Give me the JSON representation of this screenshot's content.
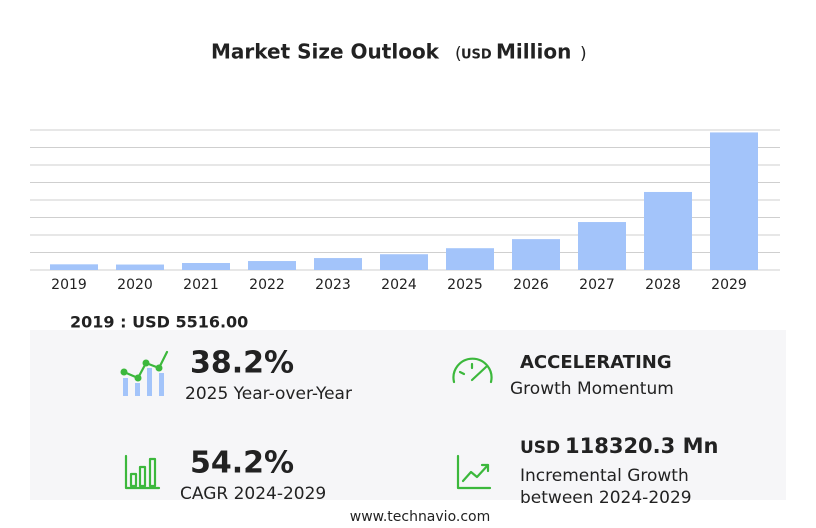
{
  "chart_data": {
    "type": "bar",
    "title": "Market Size Outlook",
    "unit": [
      "(",
      "USD",
      "Million",
      ")"
    ],
    "categories": [
      "2019",
      "2020",
      "2021",
      "2022",
      "2023",
      "2024",
      "2025",
      "2026",
      "2027",
      "2028",
      "2029"
    ],
    "values": [
      5516,
      5300,
      6800,
      8700,
      11600,
      15326,
      21180,
      30000,
      46600,
      75800,
      133646
    ],
    "color": "#a3c4fa",
    "ylim": [
      0,
      136000
    ],
    "yticks": [
      0,
      17000,
      34000,
      51000,
      68000,
      85000,
      102000,
      119000,
      136000
    ],
    "grid": true
  },
  "base": "2019 : USD  5516.00",
  "stats": [
    {
      "value": "38.2%",
      "label": "2025 Year-over-Year"
    },
    {
      "value": "ACCELERATING",
      "label": "Growth Momentum"
    },
    {
      "value": "54.2%",
      "label": "CAGR 2024-2029"
    },
    {
      "prefix": "USD",
      "value": "118320.3 Mn",
      "label": "Incremental Growth",
      "label2": "between 2024-2029"
    }
  ],
  "footer": "www.technavio.com"
}
